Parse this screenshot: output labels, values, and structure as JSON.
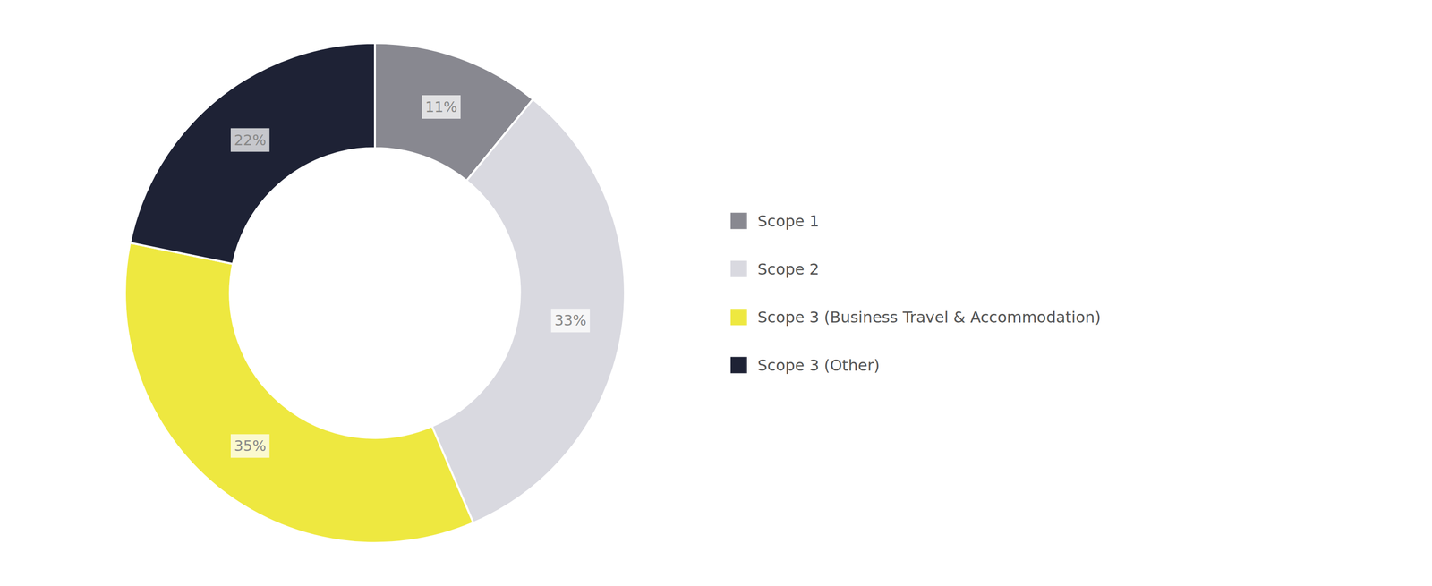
{
  "chart_data": {
    "type": "donut",
    "categories": [
      "Scope 1",
      "Scope 2",
      "Scope 3 (Business Travel & Accommodation)",
      "Scope 3 (Other)"
    ],
    "values": [
      11,
      33,
      35,
      22
    ],
    "value_labels": [
      "11%",
      "33%",
      "35%",
      "22%"
    ],
    "colors": [
      "#888890",
      "#d9d9e0",
      "#eee840",
      "#1e2235"
    ],
    "data_labels": true,
    "legend": "right"
  }
}
